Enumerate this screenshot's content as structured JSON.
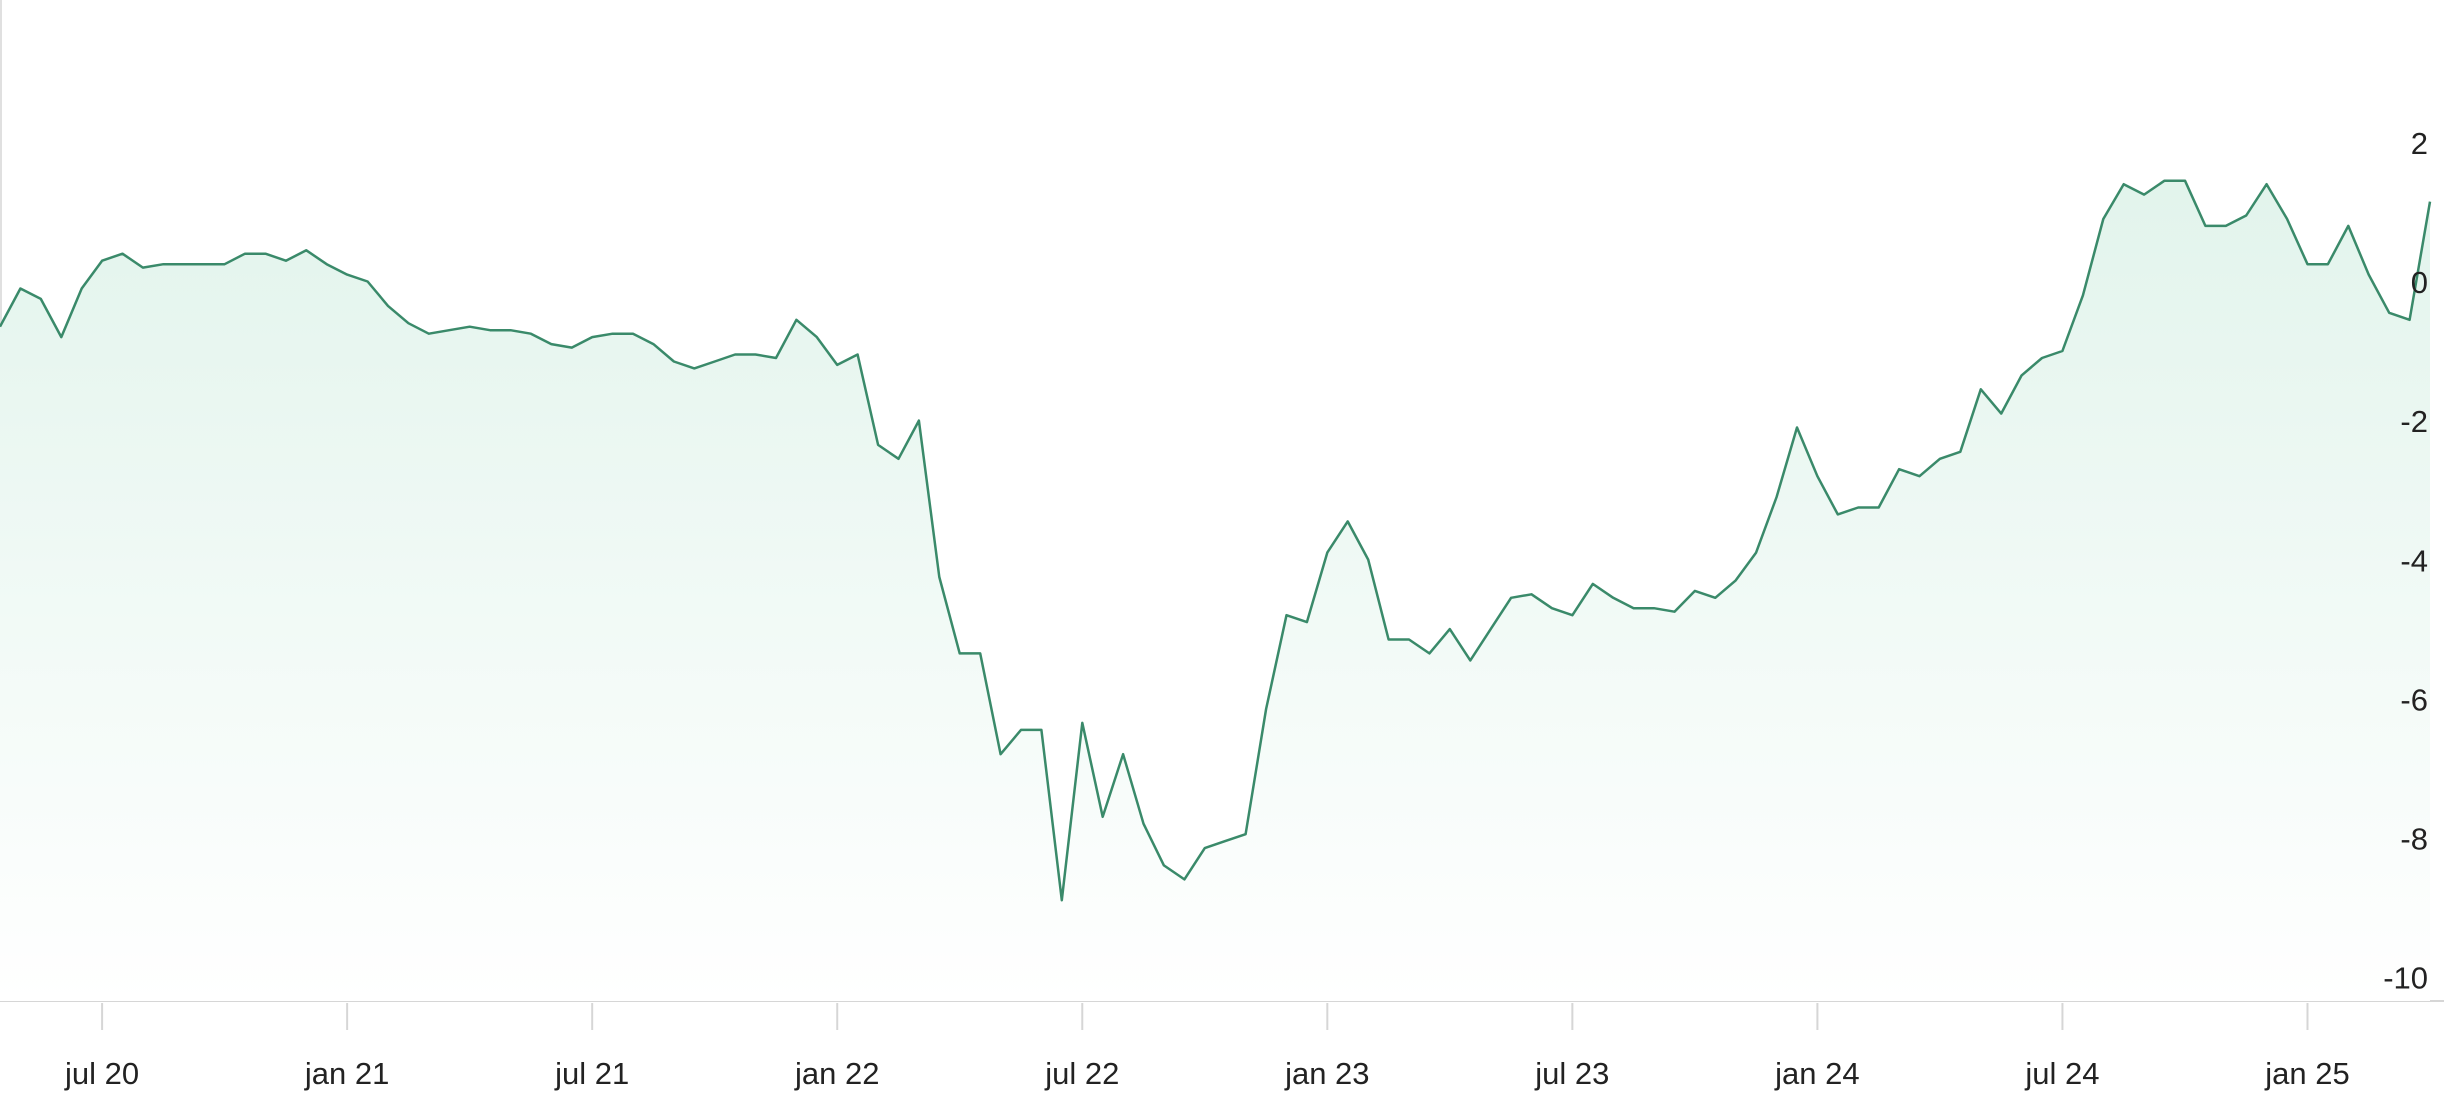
{
  "chart_data": {
    "type": "area",
    "categories": [
      null,
      null,
      null,
      null,
      null,
      "jul 20",
      null,
      null,
      null,
      null,
      null,
      null,
      null,
      null,
      null,
      null,
      null,
      "jan 21",
      null,
      null,
      null,
      null,
      null,
      null,
      null,
      null,
      null,
      null,
      null,
      "jul 21",
      null,
      null,
      null,
      null,
      null,
      null,
      null,
      null,
      null,
      null,
      null,
      "jan 22",
      null,
      null,
      null,
      null,
      null,
      null,
      null,
      null,
      null,
      null,
      null,
      "jul 22",
      null,
      null,
      null,
      null,
      null,
      null,
      null,
      null,
      null,
      null,
      null,
      "jan 23",
      null,
      null,
      null,
      null,
      null,
      null,
      null,
      null,
      null,
      null,
      null,
      "jul 23",
      null,
      null,
      null,
      null,
      null,
      null,
      null,
      null,
      null,
      null,
      null,
      "jan 24",
      null,
      null,
      null,
      null,
      null,
      null,
      null,
      null,
      null,
      null,
      null,
      "jul 24",
      null,
      null,
      null,
      null,
      null,
      null,
      null,
      null,
      null,
      null,
      null,
      "jan 25",
      null,
      null,
      null,
      null,
      null,
      null
    ],
    "values": [
      -0.6,
      -0.05,
      -0.2,
      -0.75,
      -0.05,
      0.35,
      0.45,
      0.25,
      0.3,
      0.3,
      0.3,
      0.3,
      0.45,
      0.45,
      0.35,
      0.5,
      0.3,
      0.15,
      0.05,
      -0.3,
      -0.55,
      -0.7,
      -0.65,
      -0.6,
      -0.65,
      -0.65,
      -0.7,
      -0.85,
      -0.9,
      -0.75,
      -0.7,
      -0.7,
      -0.85,
      -1.1,
      -1.2,
      -1.1,
      -1.0,
      -1.0,
      -1.05,
      -0.5,
      -0.75,
      -1.15,
      -1.0,
      -2.3,
      -2.5,
      -1.95,
      -4.2,
      -5.3,
      -5.3,
      -6.75,
      -6.4,
      -6.4,
      -8.85,
      -6.3,
      -7.65,
      -6.75,
      -7.75,
      -8.35,
      -8.55,
      -8.1,
      -8.0,
      -7.9,
      -6.1,
      -4.75,
      -4.85,
      -3.85,
      -3.4,
      -3.95,
      -5.1,
      -5.1,
      -5.3,
      -4.95,
      -5.4,
      -4.95,
      -4.5,
      -4.45,
      -4.65,
      -4.75,
      -4.3,
      -4.5,
      -4.65,
      -4.65,
      -4.7,
      -4.4,
      -4.5,
      -4.25,
      -3.85,
      -3.05,
      -2.05,
      -2.75,
      -3.3,
      -3.2,
      -3.2,
      -2.65,
      -2.75,
      -2.5,
      -2.4,
      -1.5,
      -1.85,
      -1.3,
      -1.05,
      -0.95,
      -0.15,
      0.95,
      1.45,
      1.3,
      1.5,
      1.5,
      0.85,
      0.85,
      1.0,
      1.45,
      0.95,
      0.3,
      0.3,
      0.85,
      0.15,
      -0.4,
      -0.5,
      1.2
    ],
    "color": "#3a8a6a",
    "ylim": [
      -10.3,
      4.1
    ],
    "yticks": [
      2,
      0,
      -2,
      -4,
      -6,
      -8,
      -10
    ],
    "grid": false
  }
}
